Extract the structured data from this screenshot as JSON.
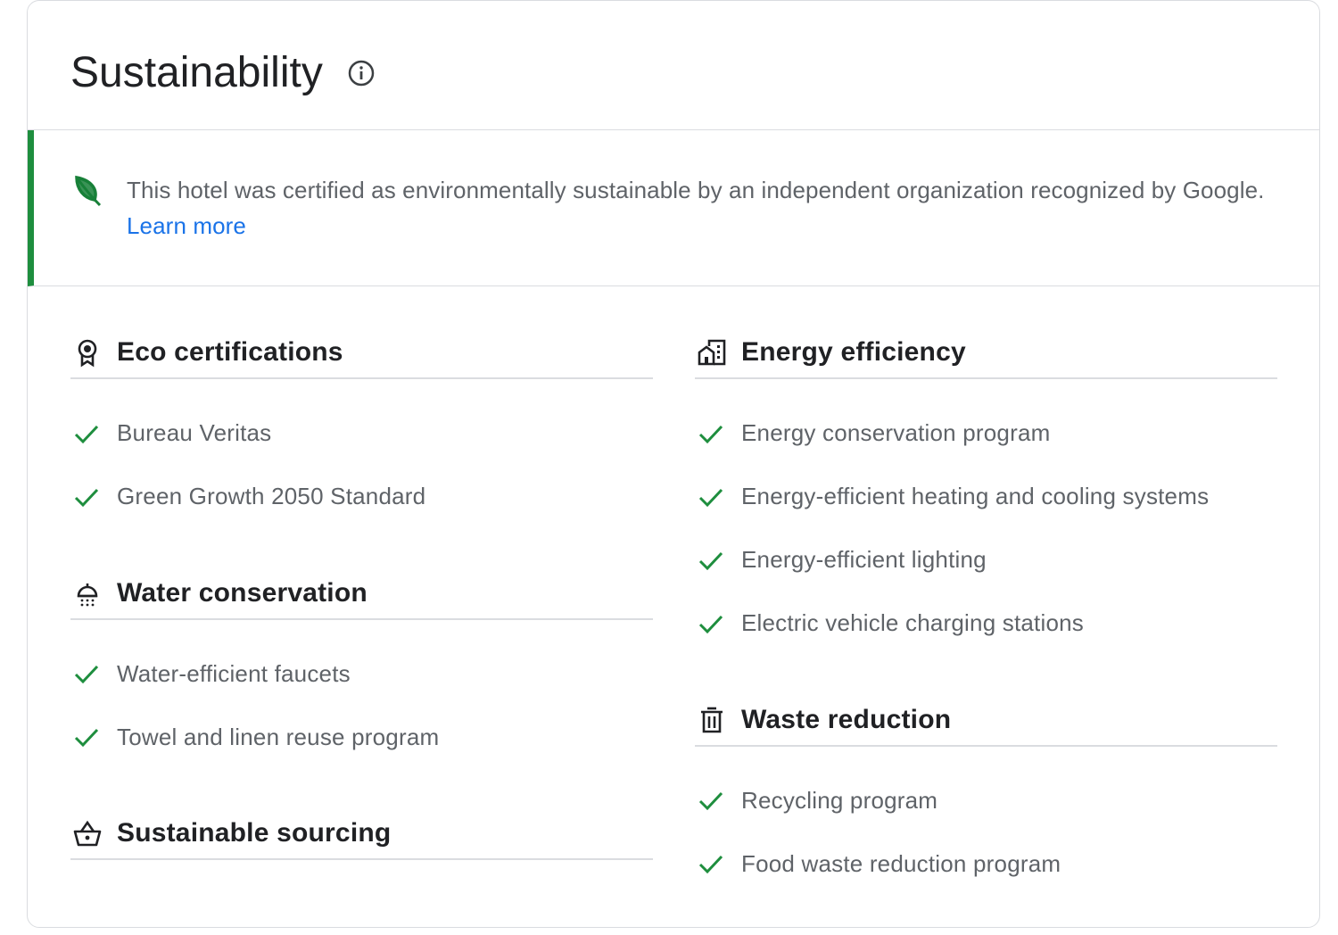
{
  "header": {
    "title": "Sustainability",
    "info_icon": "info-icon"
  },
  "banner": {
    "icon": "leaf-icon",
    "text": "This hotel was certified as environmentally sustainable by an independent organization recognized by Google.",
    "link": "Learn more",
    "accent": "#1e8e3e",
    "link_color": "#1a73e8"
  },
  "check_color": "#1e8e3e",
  "left": [
    {
      "title": "Eco certifications",
      "icon": "award-icon",
      "items": [
        "Bureau Veritas",
        "Green Growth 2050 Standard"
      ]
    },
    {
      "title": "Water conservation",
      "icon": "shower-icon",
      "items": [
        "Water-efficient faucets",
        "Towel and linen reuse program"
      ]
    },
    {
      "title": "Sustainable sourcing",
      "icon": "basket-icon",
      "items": []
    }
  ],
  "right": [
    {
      "title": "Energy efficiency",
      "icon": "building-icon",
      "items": [
        "Energy conservation program",
        "Energy-efficient heating and cooling systems",
        "Energy-efficient lighting",
        "Electric vehicle charging stations"
      ]
    },
    {
      "title": "Waste reduction",
      "icon": "trash-icon",
      "items": [
        "Recycling program",
        "Food waste reduction program"
      ]
    }
  ]
}
